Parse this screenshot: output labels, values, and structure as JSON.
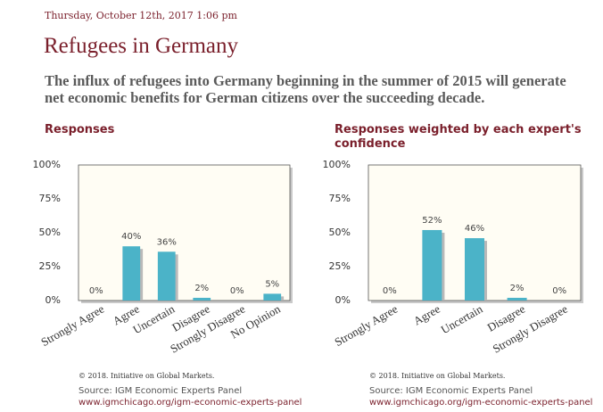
{
  "header": {
    "date": "Thursday, October 12th, 2017 1:06 pm",
    "title": "Refugees in Germany",
    "question": "The influx of refugees into Germany beginning in the summer of 2015 will generate net economic benefits for German citizens over the succeeding decade."
  },
  "colors": {
    "bar": "#4bb3c8",
    "plot_bg": "#fffdf4",
    "accent": "#7a1f2b"
  },
  "chart_data": [
    {
      "type": "bar",
      "title": "Responses",
      "categories": [
        "Strongly Agree",
        "Agree",
        "Uncertain",
        "Disagree",
        "Strongly Disagree",
        "No Opinion"
      ],
      "values": [
        0,
        40,
        36,
        2,
        0,
        5
      ],
      "data_labels": [
        "0%",
        "40%",
        "36%",
        "2%",
        "0%",
        "5%"
      ],
      "ylim": [
        0,
        100
      ],
      "yticks": [
        0,
        25,
        50,
        75,
        100
      ],
      "ytick_labels": [
        "0%",
        "25%",
        "50%",
        "75%",
        "100%"
      ],
      "grid": false
    },
    {
      "type": "bar",
      "title": "Responses weighted by each expert's confidence",
      "categories": [
        "Strongly Agree",
        "Agree",
        "Uncertain",
        "Disagree",
        "Strongly Disagree"
      ],
      "values": [
        0,
        52,
        46,
        2,
        0
      ],
      "data_labels": [
        "0%",
        "52%",
        "46%",
        "2%",
        "0%"
      ],
      "ylim": [
        0,
        100
      ],
      "yticks": [
        0,
        25,
        50,
        75,
        100
      ],
      "ytick_labels": [
        "0%",
        "25%",
        "50%",
        "75%",
        "100%"
      ],
      "grid": false
    }
  ],
  "footers": [
    {
      "copyright": "© 2018. Initiative on Global Markets.",
      "source": "Source: IGM Economic Experts Panel",
      "url": "www.igmchicago.org/igm-economic-experts-panel"
    },
    {
      "copyright": "© 2018. Initiative on Global Markets.",
      "source": "Source: IGM Economic Experts Panel",
      "url": "www.igmchicago.org/igm-economic-experts-panel"
    }
  ]
}
